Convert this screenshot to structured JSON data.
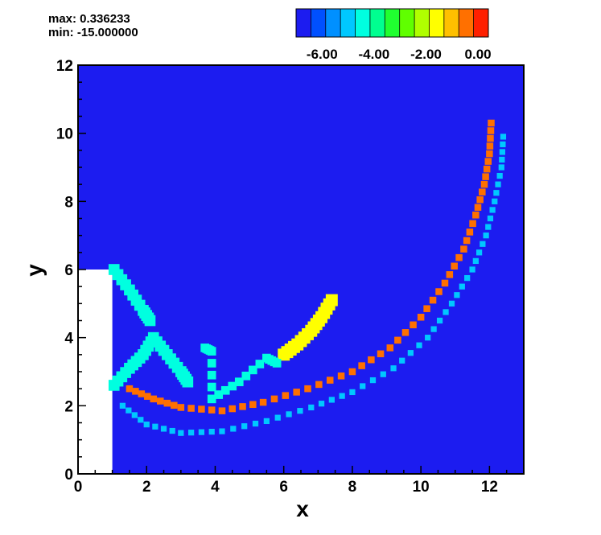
{
  "header": {
    "max_text": "max: 0.336233",
    "min_text": "min: -15.000000"
  },
  "chart_data": {
    "type": "heatmap",
    "xlabel": "x",
    "ylabel": "y",
    "xlim": [
      0,
      13
    ],
    "ylim": [
      0,
      12
    ],
    "x_ticks": [
      "0",
      "2",
      "4",
      "6",
      "8",
      "10",
      "12"
    ],
    "y_ticks": [
      "0",
      "2",
      "4",
      "6",
      "8",
      "10",
      "12"
    ],
    "field_max": 0.336233,
    "field_min": -15.0,
    "background_value": -7.0,
    "blank_region": {
      "x": [
        0,
        1
      ],
      "y": [
        0,
        6
      ]
    },
    "colorbar": {
      "range": [
        -7.0,
        0.4
      ],
      "tick_labels": [
        "-6.00",
        "-4.00",
        "-2.00",
        "0.00"
      ],
      "colors": [
        "#1c1cf0",
        "#0050ff",
        "#0090ff",
        "#00c8ff",
        "#00ffe0",
        "#00ff90",
        "#20ff30",
        "#60ff00",
        "#b0ff00",
        "#ffff00",
        "#ffc000",
        "#ff7000",
        "#ff2000"
      ]
    },
    "features": [
      {
        "name": "outer-arc-outer",
        "value": -5.2,
        "size": 0.17,
        "points": [
          [
            12.4,
            9.9
          ],
          [
            12.35,
            9.0
          ],
          [
            12.15,
            8.0
          ],
          [
            11.9,
            7.0
          ],
          [
            11.5,
            6.0
          ],
          [
            10.9,
            5.0
          ],
          [
            10.2,
            4.0
          ],
          [
            9.2,
            3.1
          ],
          [
            8.0,
            2.4
          ],
          [
            6.8,
            1.95
          ],
          [
            5.5,
            1.55
          ],
          [
            4.2,
            1.25
          ],
          [
            3.0,
            1.2
          ],
          [
            2.0,
            1.45
          ],
          [
            1.3,
            2.0
          ]
        ]
      },
      {
        "name": "outer-arc-inner",
        "value": -0.5,
        "size": 0.2,
        "points": [
          [
            12.05,
            10.3
          ],
          [
            12.0,
            9.4
          ],
          [
            11.85,
            8.5
          ],
          [
            11.6,
            7.6
          ],
          [
            11.25,
            6.6
          ],
          [
            10.7,
            5.6
          ],
          [
            10.0,
            4.6
          ],
          [
            9.1,
            3.7
          ],
          [
            8.0,
            3.0
          ],
          [
            6.7,
            2.5
          ],
          [
            5.4,
            2.1
          ],
          [
            4.2,
            1.85
          ],
          [
            3.0,
            1.95
          ],
          [
            2.2,
            2.2
          ],
          [
            1.5,
            2.5
          ]
        ]
      },
      {
        "name": "mid-arc",
        "value": -1.5,
        "size": 0.35,
        "points": [
          [
            6.0,
            3.5
          ],
          [
            6.4,
            3.8
          ],
          [
            6.8,
            4.2
          ],
          [
            7.1,
            4.6
          ],
          [
            7.4,
            5.1
          ]
        ]
      },
      {
        "name": "upper-wall-jet",
        "value": -4.3,
        "size": 0.32,
        "points": [
          [
            1.05,
            6.0
          ],
          [
            1.5,
            5.4
          ],
          [
            1.9,
            4.8
          ],
          [
            2.1,
            4.5
          ]
        ]
      },
      {
        "name": "lower-wall-jet",
        "value": -4.3,
        "size": 0.32,
        "points": [
          [
            1.05,
            2.6
          ],
          [
            1.5,
            3.1
          ],
          [
            1.9,
            3.5
          ],
          [
            2.2,
            4.0
          ],
          [
            2.6,
            3.5
          ],
          [
            3.0,
            3.0
          ],
          [
            3.2,
            2.7
          ]
        ]
      },
      {
        "name": "blobs",
        "value": -4.6,
        "size": 0.25,
        "points": [
          [
            3.7,
            3.7
          ],
          [
            3.9,
            3.6
          ],
          [
            3.9,
            2.2
          ],
          [
            4.7,
            2.7
          ],
          [
            5.5,
            3.4
          ],
          [
            5.8,
            3.25
          ]
        ]
      }
    ]
  }
}
